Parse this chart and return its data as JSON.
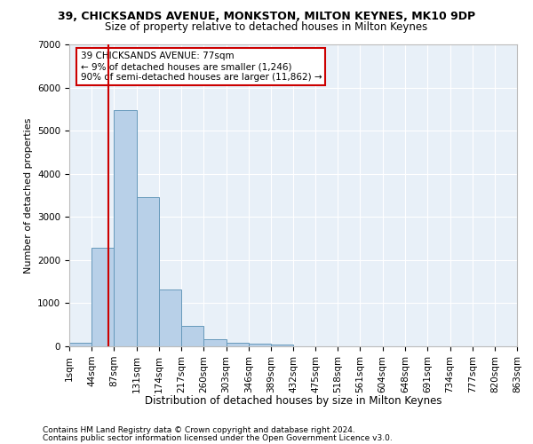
{
  "title1": "39, CHICKSANDS AVENUE, MONKSTON, MILTON KEYNES, MK10 9DP",
  "title2": "Size of property relative to detached houses in Milton Keynes",
  "xlabel": "Distribution of detached houses by size in Milton Keynes",
  "ylabel": "Number of detached properties",
  "footnote1": "Contains HM Land Registry data © Crown copyright and database right 2024.",
  "footnote2": "Contains public sector information licensed under the Open Government Licence v3.0.",
  "annotation_line1": "39 CHICKSANDS AVENUE: 77sqm",
  "annotation_line2": "← 9% of detached houses are smaller (1,246)",
  "annotation_line3": "90% of semi-detached houses are larger (11,862) →",
  "property_size": 77,
  "bar_color": "#b8d0e8",
  "bar_edge_color": "#6699bb",
  "red_line_color": "#cc0000",
  "background_color": "#e8f0f8",
  "grid_color": "#ffffff",
  "categories": [
    "1sqm",
    "44sqm",
    "87sqm",
    "131sqm",
    "174sqm",
    "217sqm",
    "260sqm",
    "303sqm",
    "346sqm",
    "389sqm",
    "432sqm",
    "475sqm",
    "518sqm",
    "561sqm",
    "604sqm",
    "648sqm",
    "691sqm",
    "734sqm",
    "777sqm",
    "820sqm",
    "863sqm"
  ],
  "bin_edges": [
    1,
    44,
    87,
    131,
    174,
    217,
    260,
    303,
    346,
    389,
    432,
    475,
    518,
    561,
    604,
    648,
    691,
    734,
    777,
    820,
    863
  ],
  "bar_heights": [
    80,
    2280,
    5480,
    3450,
    1320,
    470,
    160,
    90,
    55,
    35,
    0,
    0,
    0,
    0,
    0,
    0,
    0,
    0,
    0,
    0
  ],
  "ylim": [
    0,
    7000
  ],
  "yticks": [
    0,
    1000,
    2000,
    3000,
    4000,
    5000,
    6000,
    7000
  ],
  "annotation_fontsize": 7.5,
  "title1_fontsize": 9,
  "title2_fontsize": 8.5,
  "xlabel_fontsize": 8.5,
  "ylabel_fontsize": 8,
  "tick_fontsize": 7.5,
  "footnote_fontsize": 6.5
}
